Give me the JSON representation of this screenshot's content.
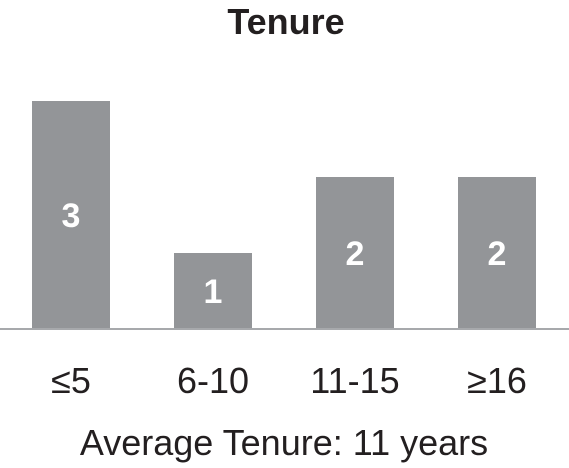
{
  "chart_data": {
    "type": "bar",
    "title": "Tenure",
    "categories": [
      "≤5",
      "6-10",
      "11-15",
      "≥16"
    ],
    "values": [
      3,
      1,
      2,
      2
    ],
    "data_labels": [
      "3",
      "1",
      "2",
      "2"
    ],
    "caption": "Average Tenure: 11 years",
    "xlabel": "",
    "ylabel": "",
    "ylim": [
      0,
      3
    ],
    "grid": false,
    "legend": "none",
    "colors": {
      "bar": "#939598",
      "axis": "#a7a9ac",
      "text": "#231f20",
      "data_label": "#ffffff",
      "background": "#ffffff"
    }
  }
}
